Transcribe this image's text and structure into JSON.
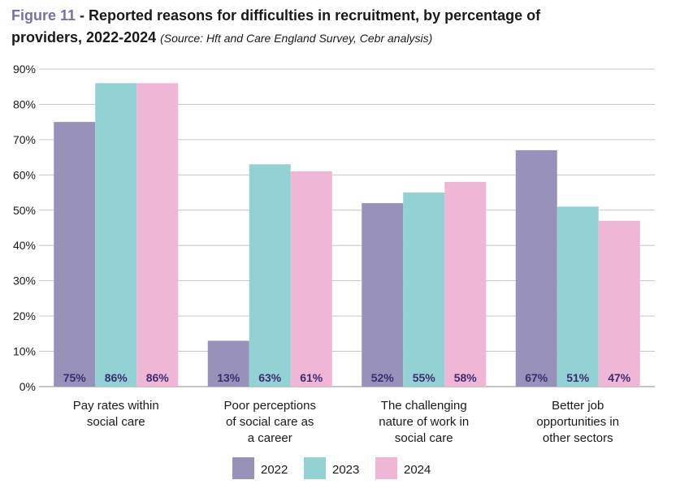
{
  "title": {
    "figure_label": "Figure 11",
    "line1": " - Reported reasons for difficulties in recruitment, by percentage of",
    "line2": "providers, 2022-2024",
    "source": "(Source: Hft and Care England Survey, Cebr analysis)"
  },
  "chart_data": {
    "type": "bar",
    "categories": [
      [
        "Pay rates within",
        "social care"
      ],
      [
        "Poor perceptions",
        "of social care as",
        "a career"
      ],
      [
        "The challenging",
        "nature of work in",
        "social care"
      ],
      [
        "Better job",
        "opportunities in",
        "other sectors"
      ]
    ],
    "series": [
      {
        "name": "2022",
        "color": "#9891ba",
        "values": [
          75,
          13,
          52,
          67
        ],
        "labels": [
          "75%",
          "13%",
          "52%",
          "67%"
        ]
      },
      {
        "name": "2023",
        "color": "#92d1d4",
        "values": [
          86,
          63,
          55,
          51
        ],
        "labels": [
          "86%",
          "63%",
          "55%",
          "51%"
        ]
      },
      {
        "name": "2024",
        "color": "#efb6d5",
        "values": [
          86,
          61,
          58,
          47
        ],
        "labels": [
          "86%",
          "61%",
          "58%",
          "47%"
        ]
      }
    ],
    "ylim": [
      0,
      90
    ],
    "yticks": [
      "0%",
      "10%",
      "20%",
      "30%",
      "40%",
      "50%",
      "60%",
      "70%",
      "80%",
      "90%"
    ],
    "grid": true,
    "legend": "bottom"
  }
}
